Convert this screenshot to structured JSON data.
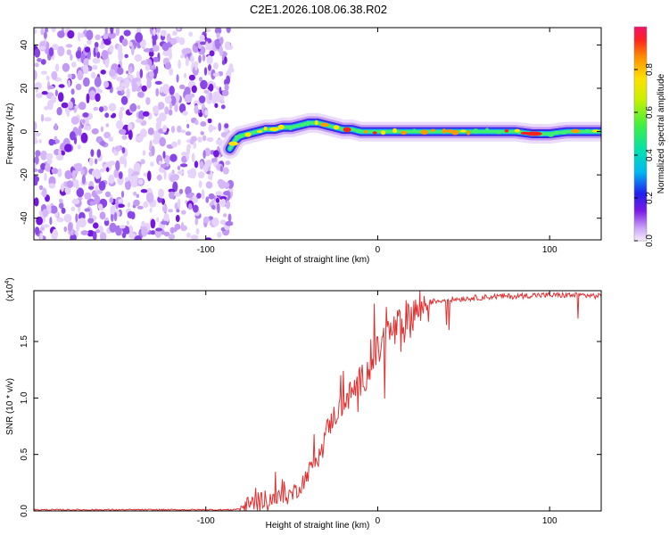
{
  "chart_data": [
    {
      "type": "heatmap",
      "title": "C2E1.2026.108.06.38.R02",
      "xlabel": "Height of straight line (km)",
      "ylabel": "Frequency (Hz)",
      "xlim": [
        -200,
        130
      ],
      "ylim": [
        -50,
        48
      ],
      "x_ticks": [
        -100,
        0,
        100
      ],
      "y_ticks": [
        -40,
        -20,
        0,
        20,
        40
      ],
      "noise_region_x": [
        -200,
        -85
      ],
      "ridge": {
        "x": [
          -86,
          -83,
          -80,
          -75,
          -70,
          -65,
          -60,
          -55,
          -50,
          -45,
          -40,
          -35,
          -30,
          -25,
          -20,
          -15,
          -10,
          -5,
          0,
          10,
          20,
          40,
          60,
          80,
          90,
          100,
          110,
          120,
          130
        ],
        "freq_hz": [
          -8,
          -4,
          -2,
          -1,
          0,
          1,
          1,
          2,
          2,
          3,
          4,
          4,
          3,
          2,
          1,
          1,
          0,
          0,
          0,
          0,
          0,
          0,
          0,
          0,
          -1,
          -1,
          0,
          0,
          0
        ]
      },
      "colorbar": {
        "label": "Normalized spectral amplitude",
        "range": [
          0,
          1
        ],
        "ticks": [
          "0.0",
          "0.2",
          "0.4",
          "0.6",
          "0.8"
        ]
      }
    },
    {
      "type": "line",
      "xlabel": "Height of straight line (km)",
      "ylabel": "SNR (10 * v/v)",
      "multiplier": "(x10",
      "multiplier_exp": "4",
      "xlim": [
        -200,
        130
      ],
      "ylim": [
        0,
        1.95
      ],
      "x_ticks": [
        -100,
        0,
        100
      ],
      "y_ticks": [
        "0.0",
        "0.5",
        "1.0",
        "1.5"
      ],
      "series": [
        {
          "name": "SNR",
          "color": "#e03030",
          "x": [
            -200,
            -150,
            -100,
            -85,
            -80,
            -75,
            -70,
            -65,
            -60,
            -55,
            -50,
            -45,
            -40,
            -35,
            -30,
            -25,
            -20,
            -15,
            -10,
            -5,
            0,
            5,
            10,
            15,
            20,
            25,
            30,
            40,
            50,
            60,
            70,
            80,
            90,
            100,
            110,
            120,
            130
          ],
          "values": [
            0.01,
            0.01,
            0.01,
            0.01,
            0.02,
            0.05,
            0.08,
            0.12,
            0.1,
            0.12,
            0.15,
            0.22,
            0.35,
            0.5,
            0.7,
            0.85,
            0.95,
            1.05,
            1.15,
            1.25,
            1.4,
            1.55,
            1.6,
            1.65,
            1.75,
            1.8,
            1.85,
            1.87,
            1.88,
            1.89,
            1.9,
            1.9,
            1.91,
            1.91,
            1.91,
            1.91,
            1.9
          ]
        }
      ]
    }
  ]
}
